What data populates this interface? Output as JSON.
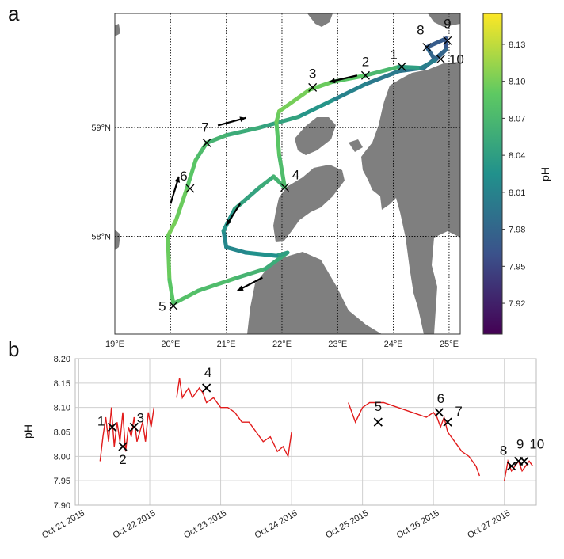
{
  "colors": {
    "land": "#7f7f7f",
    "line_b": "#e11b1b",
    "frame": "#333333",
    "grid_b": "#cfcfcf"
  },
  "chart_data": [
    {
      "type": "map",
      "panel_label": "a",
      "x_ticks": [
        "19°E",
        "20°E",
        "21°E",
        "22°E",
        "23°E",
        "24°E",
        "25°E"
      ],
      "x_tick_values": [
        19,
        20,
        21,
        22,
        23,
        24,
        25
      ],
      "y_ticks": [
        "59°N",
        "58°N"
      ],
      "y_tick_values": [
        59,
        58
      ],
      "lon_range": [
        19.0,
        25.2
      ],
      "lat_range": [
        57.1,
        60.05
      ],
      "colorbar": {
        "label": "pH",
        "ticks": [
          "8.13",
          "8.10",
          "8.07",
          "8.04",
          "8.01",
          "7.98",
          "7.95",
          "7.92"
        ],
        "tick_values": [
          8.13,
          8.1,
          8.07,
          8.04,
          8.01,
          7.98,
          7.95,
          7.92
        ],
        "range": [
          7.895,
          8.155
        ],
        "colormap": "viridis"
      },
      "track": [
        {
          "lon": 24.95,
          "lat": 59.72,
          "ph": 7.97
        },
        {
          "lon": 24.75,
          "lat": 59.62,
          "ph": 7.98
        },
        {
          "lon": 24.6,
          "lat": 59.74,
          "ph": 7.98
        },
        {
          "lon": 24.95,
          "lat": 59.82,
          "ph": 7.96
        },
        {
          "lon": 24.95,
          "lat": 59.72,
          "ph": 7.97
        },
        {
          "lon": 24.55,
          "lat": 59.55,
          "ph": 7.99
        },
        {
          "lon": 24.1,
          "lat": 59.52,
          "ph": 8.0
        },
        {
          "lon": 23.5,
          "lat": 59.4,
          "ph": 8.0
        },
        {
          "lon": 22.9,
          "lat": 59.25,
          "ph": 8.02
        },
        {
          "lon": 22.3,
          "lat": 59.1,
          "ph": 8.04
        },
        {
          "lon": 21.6,
          "lat": 59.0,
          "ph": 8.05
        },
        {
          "lon": 21.0,
          "lat": 58.93,
          "ph": 8.06
        },
        {
          "lon": 20.65,
          "lat": 58.86,
          "ph": 8.07
        },
        {
          "lon": 20.45,
          "lat": 58.7,
          "ph": 8.08
        },
        {
          "lon": 20.28,
          "lat": 58.42,
          "ph": 8.09
        },
        {
          "lon": 20.1,
          "lat": 58.15,
          "ph": 8.1
        },
        {
          "lon": 19.95,
          "lat": 58.0,
          "ph": 8.1
        },
        {
          "lon": 19.98,
          "lat": 57.6,
          "ph": 8.09
        },
        {
          "lon": 20.05,
          "lat": 57.38,
          "ph": 8.08
        },
        {
          "lon": 20.5,
          "lat": 57.5,
          "ph": 8.08
        },
        {
          "lon": 21.2,
          "lat": 57.62,
          "ph": 8.07
        },
        {
          "lon": 21.7,
          "lat": 57.7,
          "ph": 8.06
        },
        {
          "lon": 22.1,
          "lat": 57.85,
          "ph": 8.05
        },
        {
          "lon": 21.9,
          "lat": 57.82,
          "ph": 8.03
        },
        {
          "lon": 21.35,
          "lat": 57.85,
          "ph": 8.02
        },
        {
          "lon": 21.0,
          "lat": 57.9,
          "ph": 8.01
        },
        {
          "lon": 20.95,
          "lat": 58.05,
          "ph": 8.02
        },
        {
          "lon": 21.15,
          "lat": 58.25,
          "ph": 8.04
        },
        {
          "lon": 21.6,
          "lat": 58.45,
          "ph": 8.05
        },
        {
          "lon": 21.85,
          "lat": 58.55,
          "ph": 8.06
        },
        {
          "lon": 22.05,
          "lat": 58.45,
          "ph": 8.07
        },
        {
          "lon": 21.95,
          "lat": 58.75,
          "ph": 8.08
        },
        {
          "lon": 21.9,
          "lat": 59.05,
          "ph": 8.09
        },
        {
          "lon": 21.95,
          "lat": 59.15,
          "ph": 8.1
        },
        {
          "lon": 22.5,
          "lat": 59.35,
          "ph": 8.1
        },
        {
          "lon": 22.9,
          "lat": 59.42,
          "ph": 8.09
        },
        {
          "lon": 23.5,
          "lat": 59.48,
          "ph": 8.08
        },
        {
          "lon": 24.1,
          "lat": 59.56,
          "ph": 8.06
        },
        {
          "lon": 24.5,
          "lat": 59.55,
          "ph": 8.02
        },
        {
          "lon": 24.75,
          "lat": 59.62,
          "ph": 7.99
        }
      ],
      "stations": [
        {
          "label": "1",
          "lon": 24.15,
          "lat": 59.56
        },
        {
          "label": "2",
          "lon": 23.5,
          "lat": 59.48
        },
        {
          "label": "3",
          "lon": 22.55,
          "lat": 59.37
        },
        {
          "label": "4",
          "lon": 22.05,
          "lat": 58.45
        },
        {
          "label": "5",
          "lon": 20.05,
          "lat": 57.36
        },
        {
          "label": "6",
          "lon": 20.35,
          "lat": 58.44
        },
        {
          "label": "7",
          "lon": 20.65,
          "lat": 58.86
        },
        {
          "label": "8",
          "lon": 24.6,
          "lat": 59.74
        },
        {
          "label": "9",
          "lon": 24.97,
          "lat": 59.8
        },
        {
          "label": "10",
          "lon": 24.85,
          "lat": 59.63
        }
      ],
      "arrows": [
        {
          "lon1": 23.35,
          "lat1": 59.48,
          "lon2": 22.85,
          "lat2": 59.42
        },
        {
          "lon1": 20.85,
          "lat1": 59.02,
          "lon2": 21.35,
          "lat2": 59.09
        },
        {
          "lon1": 20.0,
          "lat1": 58.3,
          "lon2": 20.15,
          "lat2": 58.55
        },
        {
          "lon1": 21.25,
          "lat1": 58.3,
          "lon2": 21.0,
          "lat2": 58.1
        },
        {
          "lon1": 21.65,
          "lat1": 57.62,
          "lon2": 21.2,
          "lat2": 57.5
        }
      ]
    },
    {
      "type": "line",
      "panel_label": "b",
      "ylabel": "pH",
      "y_ticks": [
        "8.20",
        "8.15",
        "8.10",
        "8.05",
        "8.00",
        "7.95",
        "7.90"
      ],
      "y_tick_values": [
        8.2,
        8.15,
        8.1,
        8.05,
        8.0,
        7.95,
        7.9
      ],
      "ylim": [
        7.9,
        8.2
      ],
      "x_ticks": [
        "Oct 21 2015",
        "Oct 22 2015",
        "Oct 23 2015",
        "Oct 24 2015",
        "Oct 25 2015",
        "Oct 26 2015",
        "Oct 27 2015"
      ],
      "x_tick_values": [
        0,
        1,
        2,
        3,
        4,
        5,
        6
      ],
      "xlim": [
        -0.05,
        6.45
      ],
      "series": [
        {
          "x": [
            0.3,
            0.34,
            0.38,
            0.42,
            0.46,
            0.5,
            0.54,
            0.58,
            0.62,
            0.66,
            0.7,
            0.74,
            0.78,
            0.82,
            0.86,
            0.9,
            0.94,
            0.98,
            1.02,
            1.06
          ],
          "y": [
            7.99,
            8.04,
            8.08,
            8.03,
            8.1,
            8.02,
            8.07,
            8.03,
            8.09,
            8.01,
            8.06,
            8.04,
            8.08,
            8.03,
            8.05,
            8.07,
            8.03,
            8.09,
            8.06,
            8.1
          ]
        },
        {
          "x": [
            1.38,
            1.42,
            1.46,
            1.5,
            1.55,
            1.6,
            1.65,
            1.7,
            1.75,
            1.8,
            1.9,
            2.0,
            2.1,
            2.2,
            2.3,
            2.4,
            2.5,
            2.6,
            2.7,
            2.8,
            2.88,
            2.95,
            3.0
          ],
          "y": [
            8.12,
            8.16,
            8.12,
            8.13,
            8.14,
            8.12,
            8.13,
            8.14,
            8.13,
            8.11,
            8.12,
            8.1,
            8.1,
            8.09,
            8.07,
            8.07,
            8.05,
            8.03,
            8.04,
            8.01,
            8.02,
            8.0,
            8.05
          ]
        },
        {
          "x": [
            3.8,
            3.9,
            4.0,
            4.1,
            4.3,
            4.5,
            4.7,
            4.9,
            5.0,
            5.05,
            5.1,
            5.15,
            5.2,
            5.3,
            5.4,
            5.5,
            5.6,
            5.65
          ],
          "y": [
            8.11,
            8.07,
            8.1,
            8.11,
            8.11,
            8.1,
            8.09,
            8.08,
            8.09,
            8.08,
            8.06,
            8.08,
            8.05,
            8.03,
            8.01,
            8.0,
            7.98,
            7.96
          ]
        },
        {
          "x": [
            6.0,
            6.05,
            6.1,
            6.15,
            6.2,
            6.25,
            6.3,
            6.35,
            6.4
          ],
          "y": [
            7.95,
            7.99,
            7.97,
            7.98,
            7.99,
            7.97,
            7.98,
            7.99,
            7.98
          ]
        }
      ],
      "stations": [
        {
          "label": "1",
          "x": 0.47,
          "y": 8.06
        },
        {
          "label": "2",
          "x": 0.62,
          "y": 8.02
        },
        {
          "label": "3",
          "x": 0.78,
          "y": 8.06
        },
        {
          "label": "4",
          "x": 1.8,
          "y": 8.14
        },
        {
          "label": "5",
          "x": 4.22,
          "y": 8.07
        },
        {
          "label": "6",
          "x": 5.08,
          "y": 8.09
        },
        {
          "label": "7",
          "x": 5.2,
          "y": 8.07
        },
        {
          "label": "8",
          "x": 6.1,
          "y": 7.98
        },
        {
          "label": "9",
          "x": 6.2,
          "y": 7.99
        },
        {
          "label": "10",
          "x": 6.28,
          "y": 7.99
        }
      ]
    }
  ]
}
